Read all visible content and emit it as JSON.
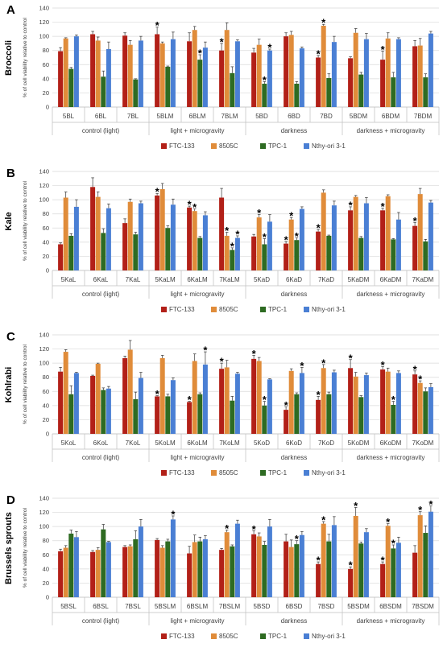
{
  "figure": {
    "ylabel": "% of cell viability relative to control",
    "groups": [
      "control (light)",
      "light + microgravity",
      "darkness",
      "darkness + microgravity"
    ],
    "legend": [
      "FTC-133",
      "8505C",
      "TPC-1",
      "Nthy-ori 3-1"
    ],
    "colors": {
      "FTC-133": "#b22018",
      "8505C": "#e08c3a",
      "TPC-1": "#2e6b22",
      "Nthy-ori 3-1": "#4a7fd4"
    },
    "yticks": [
      0,
      20,
      40,
      60,
      80,
      100,
      120,
      140
    ]
  },
  "chart_data": [
    {
      "type": "bar",
      "panel": "A",
      "title": "Broccoli",
      "ylabel": "% of cell viability relative to control",
      "ylim": [
        0,
        140
      ],
      "categories": [
        "5BL",
        "6BL",
        "7BL",
        "5BLM",
        "6BLM",
        "7BLM",
        "5BD",
        "6BD",
        "7BD",
        "5BDM",
        "6BDM",
        "7BDM"
      ],
      "groups": [
        "control (light)",
        "light + microgravity",
        "darkness",
        "darkness + microgravity"
      ],
      "series": [
        {
          "name": "FTC-133",
          "values": [
            79,
            103,
            101,
            103,
            93,
            80,
            77,
            100,
            70,
            69,
            67,
            86
          ],
          "errors": [
            5,
            4,
            4,
            10,
            12,
            10,
            6,
            5,
            3,
            2,
            12,
            8
          ],
          "sig": [
            false,
            false,
            false,
            true,
            false,
            true,
            false,
            false,
            true,
            false,
            true,
            false
          ]
        },
        {
          "name": "8505C",
          "values": [
            97,
            94,
            88,
            90,
            109,
            109,
            88,
            102,
            115,
            105,
            97,
            87
          ],
          "errors": [
            1,
            5,
            6,
            2,
            5,
            10,
            8,
            5,
            2,
            6,
            8,
            10
          ],
          "sig": [
            false,
            false,
            false,
            false,
            false,
            false,
            false,
            false,
            true,
            false,
            false,
            false
          ]
        },
        {
          "name": "TPC-1",
          "values": [
            54,
            43,
            39,
            57,
            67,
            48,
            33,
            33,
            41,
            46,
            42,
            42
          ],
          "errors": [
            2,
            8,
            1,
            1,
            7,
            9,
            3,
            3,
            6,
            3,
            7,
            5
          ],
          "sig": [
            false,
            false,
            false,
            false,
            true,
            false,
            true,
            false,
            false,
            false,
            false,
            false
          ]
        },
        {
          "name": "Nthy-ori 3-1",
          "values": [
            100,
            82,
            94,
            96,
            84,
            93,
            80,
            83,
            92,
            96,
            96,
            104
          ],
          "errors": [
            2,
            10,
            6,
            10,
            8,
            2,
            2,
            2,
            8,
            8,
            2,
            3
          ],
          "sig": [
            false,
            false,
            false,
            false,
            false,
            false,
            true,
            false,
            false,
            false,
            false,
            false
          ]
        }
      ],
      "legend": "bottom"
    },
    {
      "type": "bar",
      "panel": "B",
      "title": "Kale",
      "ylabel": "% of cell viability relative to control",
      "ylim": [
        0,
        140
      ],
      "categories": [
        "5KaL",
        "6KaL",
        "7KaL",
        "5KaLM",
        "6KaLM",
        "7KaLM",
        "5KaD",
        "6KaD",
        "7KaD",
        "5KaDM",
        "6KaDM",
        "7KaDM"
      ],
      "groups": [
        "control (light)",
        "light + microgravity",
        "darkness",
        "darkness + microgravity"
      ],
      "series": [
        {
          "name": "FTC-133",
          "values": [
            37,
            118,
            67,
            106,
            89,
            103,
            48,
            38,
            55,
            85,
            85,
            63
          ],
          "errors": [
            2,
            13,
            6,
            3,
            2,
            13,
            3,
            3,
            3,
            5,
            3,
            5
          ],
          "sig": [
            false,
            false,
            false,
            true,
            true,
            false,
            false,
            true,
            true,
            true,
            true,
            true
          ]
        },
        {
          "name": "8505C",
          "values": [
            103,
            104,
            97,
            115,
            84,
            49,
            75,
            72,
            110,
            104,
            105,
            108
          ],
          "errors": [
            8,
            7,
            4,
            8,
            3,
            5,
            4,
            3,
            4,
            2,
            2,
            8
          ],
          "sig": [
            false,
            false,
            false,
            false,
            true,
            true,
            true,
            true,
            false,
            false,
            false,
            false
          ]
        },
        {
          "name": "TPC-1",
          "values": [
            49,
            53,
            51,
            60,
            46,
            29,
            37,
            43,
            49,
            46,
            44,
            41
          ],
          "errors": [
            3,
            6,
            3,
            3,
            2,
            3,
            8,
            3,
            1,
            2,
            1,
            3
          ],
          "sig": [
            false,
            false,
            false,
            false,
            false,
            true,
            true,
            true,
            false,
            false,
            false,
            false
          ]
        },
        {
          "name": "Nthy-ori 3-1",
          "values": [
            90,
            88,
            95,
            93,
            78,
            46,
            69,
            87,
            92,
            95,
            72,
            96
          ],
          "errors": [
            10,
            6,
            3,
            8,
            5,
            3,
            10,
            3,
            6,
            8,
            10,
            3
          ],
          "sig": [
            false,
            false,
            false,
            false,
            false,
            true,
            false,
            false,
            false,
            false,
            false,
            false
          ]
        }
      ],
      "legend": "bottom"
    },
    {
      "type": "bar",
      "panel": "C",
      "title": "Kohlrabi",
      "ylabel": "% of cell viability relative to control",
      "ylim": [
        0,
        140
      ],
      "categories": [
        "5KoL",
        "6KoL",
        "7KoL",
        "5KoLM",
        "6KoLM",
        "7KoLM",
        "5KoD",
        "6KoD",
        "7KoD",
        "5KoDM",
        "6KoDM",
        "7KoDM"
      ],
      "groups": [
        "control (light)",
        "light + microgravity",
        "darkness",
        "darkness + microgravity"
      ],
      "series": [
        {
          "name": "FTC-133",
          "values": [
            88,
            82,
            107,
            53,
            45,
            92,
            106,
            34,
            48,
            93,
            91,
            84
          ],
          "errors": [
            6,
            1,
            3,
            1,
            1,
            8,
            5,
            4,
            5,
            12,
            4,
            5
          ],
          "sig": [
            false,
            false,
            false,
            true,
            true,
            true,
            true,
            true,
            true,
            true,
            true,
            true
          ]
        },
        {
          "name": "8505C",
          "values": [
            116,
            99,
            119,
            107,
            103,
            94,
            103,
            89,
            93,
            81,
            88,
            72
          ],
          "errors": [
            3,
            1,
            13,
            4,
            10,
            10,
            5,
            3,
            5,
            6,
            5,
            3
          ],
          "sig": [
            false,
            false,
            false,
            false,
            false,
            false,
            false,
            false,
            true,
            false,
            false,
            true
          ]
        },
        {
          "name": "TPC-1",
          "values": [
            56,
            62,
            49,
            53,
            56,
            47,
            40,
            56,
            56,
            52,
            41,
            60
          ],
          "errors": [
            12,
            3,
            10,
            3,
            2,
            6,
            6,
            2,
            3,
            2,
            5,
            5
          ],
          "sig": [
            false,
            false,
            false,
            false,
            false,
            false,
            true,
            false,
            false,
            false,
            true,
            false
          ]
        },
        {
          "name": "Nthy-ori 3-1",
          "values": [
            86,
            64,
            79,
            76,
            98,
            85,
            77,
            86,
            87,
            83,
            86,
            66
          ],
          "errors": [
            1,
            3,
            8,
            3,
            18,
            2,
            1,
            8,
            3,
            3,
            3,
            5
          ],
          "sig": [
            false,
            false,
            false,
            false,
            true,
            false,
            false,
            true,
            false,
            false,
            false,
            false
          ]
        }
      ],
      "legend": "bottom"
    },
    {
      "type": "bar",
      "panel": "D",
      "title": "Brussels sprouts",
      "ylabel": "% of cell viability relative to control",
      "ylim": [
        0,
        140
      ],
      "categories": [
        "5BSL",
        "6BSL",
        "7BSL",
        "5BSLM",
        "6BSLM",
        "7BSLM",
        "5BSD",
        "6BSD",
        "7BSD",
        "5BSDM",
        "6BSDM",
        "7BSDM"
      ],
      "groups": [
        "control (light)",
        "light + microgravity",
        "darkness",
        "darkness + microgravity"
      ],
      "series": [
        {
          "name": "FTC-133",
          "values": [
            65,
            64,
            71,
            81,
            62,
            67,
            89,
            79,
            47,
            40,
            47,
            63
          ],
          "errors": [
            3,
            2,
            2,
            2,
            10,
            2,
            5,
            10,
            3,
            3,
            3,
            10
          ],
          "sig": [
            false,
            false,
            false,
            false,
            false,
            false,
            true,
            false,
            true,
            true,
            true,
            false
          ]
        },
        {
          "name": "8505C",
          "values": [
            70,
            67,
            72,
            70,
            78,
            92,
            86,
            71,
            104,
            115,
            101,
            116
          ],
          "errors": [
            3,
            3,
            2,
            3,
            10,
            3,
            5,
            10,
            3,
            12,
            3,
            5
          ],
          "sig": [
            false,
            false,
            false,
            false,
            false,
            true,
            false,
            false,
            true,
            true,
            true,
            true
          ]
        },
        {
          "name": "TPC-1",
          "values": [
            90,
            96,
            82,
            79,
            79,
            72,
            74,
            75,
            79,
            76,
            69,
            91
          ],
          "errors": [
            5,
            7,
            12,
            3,
            6,
            2,
            5,
            5,
            10,
            2,
            5,
            10
          ],
          "sig": [
            false,
            false,
            false,
            false,
            false,
            false,
            false,
            true,
            false,
            false,
            true,
            false
          ]
        },
        {
          "name": "Nthy-ori 3-1",
          "values": [
            85,
            78,
            100,
            110,
            82,
            104,
            100,
            88,
            102,
            92,
            77,
            121
          ],
          "errors": [
            8,
            1,
            10,
            5,
            5,
            5,
            10,
            5,
            12,
            5,
            8,
            8
          ],
          "sig": [
            false,
            false,
            false,
            true,
            false,
            false,
            false,
            false,
            false,
            false,
            false,
            true
          ]
        }
      ],
      "legend": "bottom"
    }
  ]
}
